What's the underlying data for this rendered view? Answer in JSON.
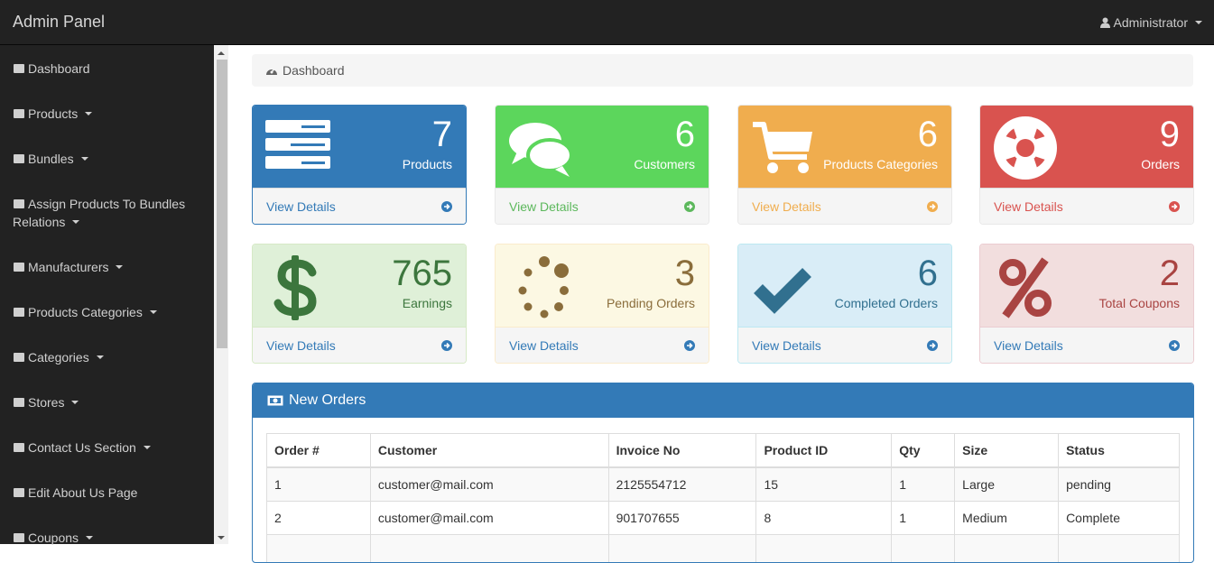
{
  "navbar": {
    "brand": "Admin Panel",
    "user": "Administrator"
  },
  "sidebar": {
    "items": [
      "Dashboard",
      "Products",
      "Bundles",
      "Assign Products To Bundles Relations",
      "Manufacturers",
      "Products Categories",
      "Categories",
      "Stores",
      "Contact Us Section",
      "Edit About Us Page",
      "Coupons"
    ]
  },
  "breadcrumb": "Dashboard",
  "stats": [
    {
      "value": 7,
      "label": "Products",
      "link": "View Details"
    },
    {
      "value": 6,
      "label": "Customers",
      "link": "View Details"
    },
    {
      "value": 6,
      "label": "Products Categories",
      "link": "View Details"
    },
    {
      "value": 9,
      "label": "Orders",
      "link": "View Details"
    },
    {
      "value": 765,
      "label": "Earnings",
      "link": "View Details"
    },
    {
      "value": 3,
      "label": "Pending Orders",
      "link": "View Details"
    },
    {
      "value": 6,
      "label": "Completed Orders",
      "link": "View Details"
    },
    {
      "value": 2,
      "label": "Total Coupons",
      "link": "View Details"
    }
  ],
  "orders": {
    "title": "New Orders",
    "columns": [
      "Order #",
      "Customer",
      "Invoice No",
      "Product ID",
      "Qty",
      "Size",
      "Status"
    ],
    "rows": [
      [
        1,
        "customer@mail.com",
        2125554712,
        15,
        1,
        "Large",
        "pending"
      ],
      [
        2,
        "customer@mail.com",
        901707655,
        8,
        1,
        "Medium",
        "Complete"
      ]
    ]
  }
}
